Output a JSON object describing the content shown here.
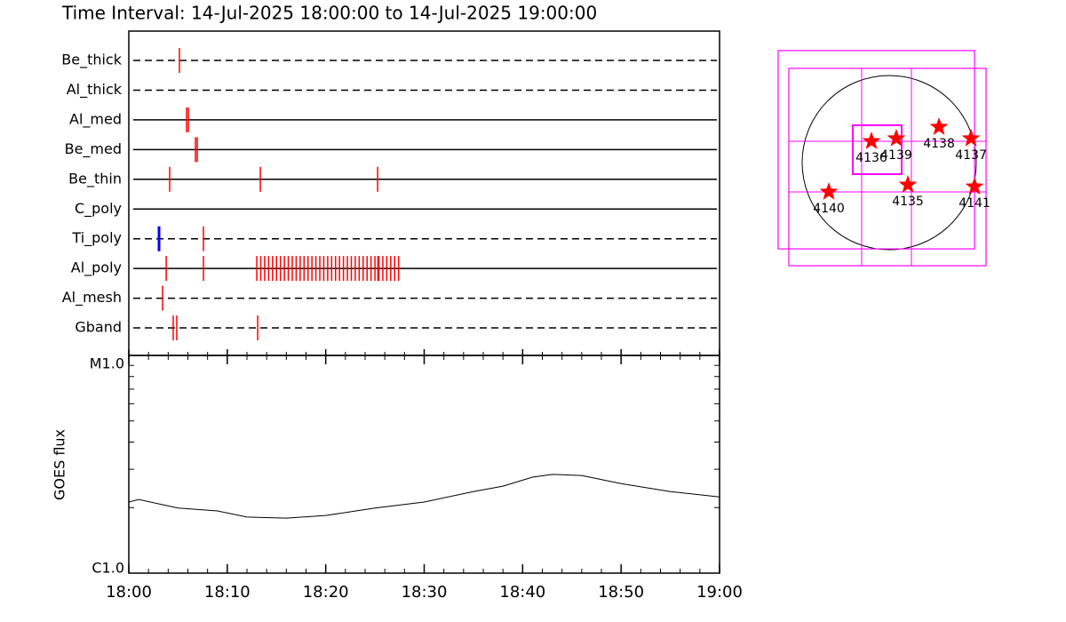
{
  "chart_data": [
    {
      "type": "timeline",
      "title": "Time Interval: 14-Jul-2025 18:00:00 to 14-Jul-2025 19:00:00",
      "xlim": [
        0,
        60
      ],
      "event_color": "#ff0000",
      "rows": [
        {
          "name": "Be_thick",
          "style": "dashed",
          "events": [
            5.14
          ]
        },
        {
          "name": "Al_thick",
          "style": "dashed",
          "events": []
        },
        {
          "name": "Al_med",
          "style": "solid",
          "events": [
            5.87,
            6.05
          ]
        },
        {
          "name": "Be_med",
          "style": "solid",
          "events": [
            6.77,
            6.95
          ]
        },
        {
          "name": "Be_thin",
          "style": "solid",
          "events": [
            4.15,
            13.36,
            25.27
          ]
        },
        {
          "name": "C_poly",
          "style": "solid",
          "events": []
        },
        {
          "name": "Ti_poly",
          "style": "dashed",
          "events": [
            3.07,
            7.58
          ],
          "event_colors": [
            "#0000ff",
            "#ff0000"
          ]
        },
        {
          "name": "Al_poly",
          "style": "solid",
          "events": [
            3.8,
            7.58,
            13.0,
            13.4,
            13.8,
            14.2,
            14.6,
            15.0,
            15.4,
            15.8,
            16.2,
            16.6,
            17.0,
            17.4,
            17.8,
            18.2,
            18.6,
            19.0,
            19.4,
            19.8,
            20.2,
            20.6,
            21.0,
            21.4,
            21.8,
            22.2,
            22.6,
            23.0,
            23.4,
            23.8,
            24.2,
            24.6,
            25.0,
            25.3,
            25.4,
            25.8,
            26.2,
            26.6,
            27.0,
            27.4
          ]
        },
        {
          "name": "Al_mesh",
          "style": "dashed",
          "events": [
            3.43
          ]
        },
        {
          "name": "Gband",
          "style": "dashed",
          "events": [
            4.51,
            4.87,
            13.09
          ]
        }
      ]
    },
    {
      "type": "line",
      "ylabel": "GOES flux",
      "log_y": true,
      "xlim": [
        0,
        60
      ],
      "xticks": [
        {
          "value": 0,
          "label": "18:00"
        },
        {
          "value": 10,
          "label": "18:10"
        },
        {
          "value": 20,
          "label": "18:20"
        },
        {
          "value": 30,
          "label": "18:30"
        },
        {
          "value": 40,
          "label": "18:40"
        },
        {
          "value": 50,
          "label": "18:50"
        },
        {
          "value": 60,
          "label": "19:00"
        }
      ],
      "xminor": [
        2,
        4,
        6,
        8,
        12,
        14,
        16,
        18,
        22,
        24,
        26,
        28,
        32,
        34,
        36,
        38,
        42,
        44,
        46,
        48,
        52,
        54,
        56,
        58
      ],
      "ylim": [
        1e-06,
        1e-05
      ],
      "yticks": [
        {
          "value": 1e-06,
          "label": "C1.0"
        },
        {
          "value": 1e-05,
          "label": "M1.0"
        }
      ],
      "yminor": [
        2e-06,
        3e-06,
        4e-06,
        5e-06,
        6e-06,
        7e-06,
        8e-06,
        9e-06
      ],
      "color": "#000000",
      "x": [
        0,
        1,
        5,
        9,
        12,
        16,
        20,
        25,
        30,
        35,
        38,
        41,
        43,
        46,
        50,
        55,
        60
      ],
      "values": [
        2.12e-06,
        2.18e-06,
        1.99e-06,
        1.93e-06,
        1.81e-06,
        1.79e-06,
        1.84e-06,
        1.99e-06,
        2.12e-06,
        2.37e-06,
        2.51e-06,
        2.76e-06,
        2.84e-06,
        2.81e-06,
        2.58e-06,
        2.37e-06,
        2.24e-06
      ]
    },
    {
      "type": "sun_map",
      "solar_radius": 960,
      "box_color": "#ff00ff",
      "star_color": "#ff0000",
      "fields": [
        {
          "x": [
            -1225,
            941
          ],
          "y": [
            -951,
            1235
          ]
        },
        {
          "x": [
            -1107,
            1068
          ],
          "y": [
            -1137,
            1039
          ]
        },
        {
          "x": [
            -402,
            137
          ],
          "y": [
            -127,
            412
          ]
        }
      ],
      "grid_x": [
        -304,
        245
      ],
      "grid_y": [
        -323,
        235
      ],
      "regions": [
        {
          "label": "4136",
          "x": -196,
          "y": 235
        },
        {
          "label": "4139",
          "x": 78,
          "y": 265
        },
        {
          "label": "4138",
          "x": 549,
          "y": 392
        },
        {
          "label": "4137",
          "x": 902,
          "y": 265
        },
        {
          "label": "4135",
          "x": 206,
          "y": -245
        },
        {
          "label": "4141",
          "x": 941,
          "y": -265
        },
        {
          "label": "4140",
          "x": -666,
          "y": -323
        }
      ]
    }
  ]
}
